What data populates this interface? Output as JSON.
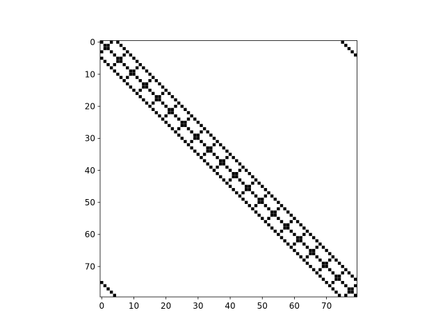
{
  "chart_data": {
    "type": "heatmap",
    "description_kind": "sparsity pattern (spy plot) of an 80x80 matrix",
    "shape": [
      80,
      80
    ],
    "marker_color": "#000000",
    "background_color": "#ffffff",
    "x_ticks": [
      0,
      10,
      20,
      30,
      40,
      50,
      60,
      70
    ],
    "y_ticks": [
      0,
      10,
      20,
      30,
      40,
      50,
      60,
      70
    ],
    "x_tick_labels": [
      "0",
      "10",
      "20",
      "30",
      "40",
      "50",
      "60",
      "70"
    ],
    "y_tick_labels": [
      "0",
      "10",
      "20",
      "30",
      "40",
      "50",
      "60",
      "70"
    ],
    "xlim": [
      -0.5,
      79.5
    ],
    "ylim": [
      79.5,
      -0.5
    ],
    "x_axis_position": "bottom",
    "y_axis_inverted": true,
    "grid": false,
    "title": "",
    "xlabel": "",
    "ylabel": "",
    "nonzero_pattern": {
      "main_diagonal": true,
      "block_size": 4,
      "antidiagonal_within_block": true,
      "super_diagonal_offset": 5,
      "sub_diagonal_offset": 5,
      "periodic_wrap": true
    }
  }
}
